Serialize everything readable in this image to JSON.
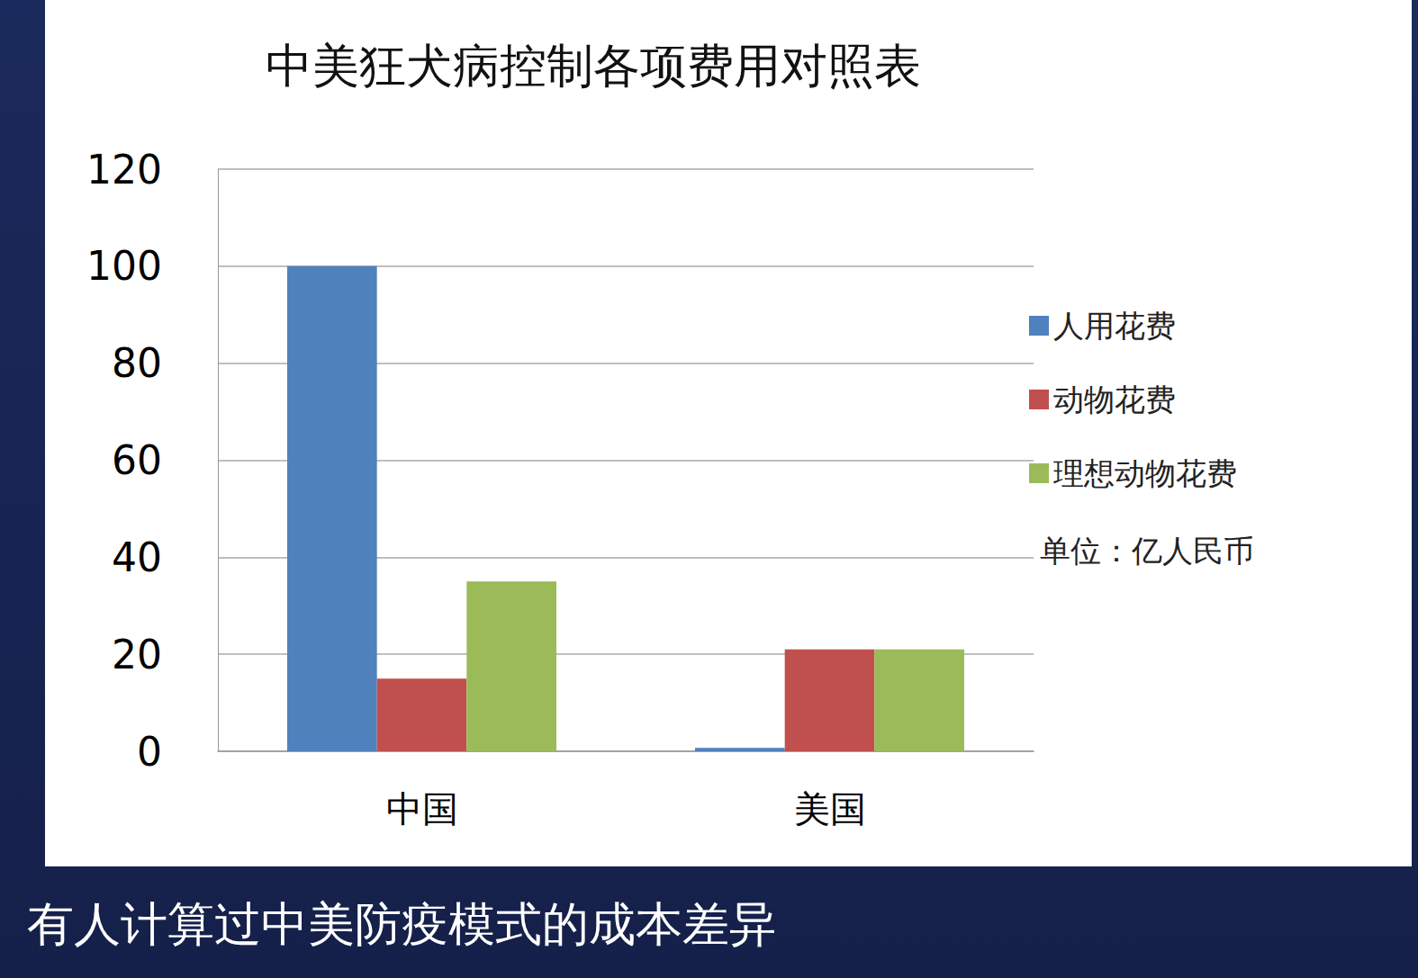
{
  "chart_data": {
    "type": "bar",
    "title": "中美狂犬病控制各项费用对照表",
    "categories": [
      "中国",
      "美国"
    ],
    "series": [
      {
        "name": "人用花费",
        "color": "#4f81bd",
        "values": [
          100,
          0.7
        ]
      },
      {
        "name": "动物花费",
        "color": "#c0504d",
        "values": [
          15,
          21
        ]
      },
      {
        "name": "理想动物花费",
        "color": "#9bbb59",
        "values": [
          35,
          21
        ]
      }
    ],
    "annotations": [
      "单位：亿人民币"
    ],
    "ylim": [
      0,
      120
    ],
    "yticks": [
      0,
      20,
      40,
      60,
      80,
      100,
      120
    ],
    "grid": true,
    "legend": "right"
  },
  "caption": "有人计算过中美防疫模式的成本差异"
}
